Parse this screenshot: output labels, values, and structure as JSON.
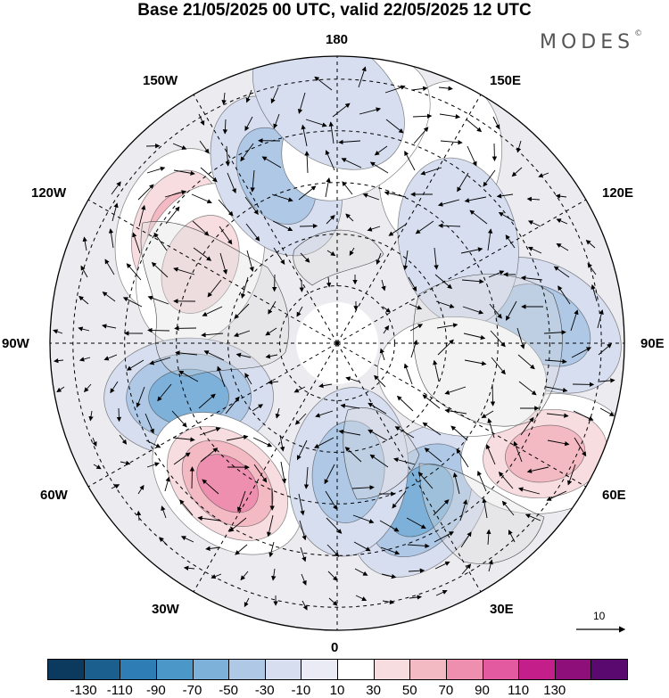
{
  "title": "Base 21/05/2025 00 UTC, valid 22/05/2025 12 UTC",
  "brand": "MODES",
  "brand_mark": "©",
  "longitude_labels": {
    "top": "180",
    "bottom": "0",
    "left": "90W",
    "right": "90E",
    "upper_left_1": "150W",
    "upper_left_2": "120W",
    "lower_left_1": "60W",
    "lower_left_2": "30W",
    "upper_right_1": "150E",
    "upper_right_2": "120E",
    "lower_right_1": "60E",
    "lower_right_2": "30E"
  },
  "reference_vector": "10",
  "colorbar": {
    "colors": [
      "#0c3a5e",
      "#1b5f8f",
      "#2f7db5",
      "#4b98c8",
      "#7eb1d9",
      "#aec8e6",
      "#d6def0",
      "#ebebf6",
      "#ffffff",
      "#f8dde0",
      "#f3bac4",
      "#ee8fb0",
      "#e45aa0",
      "#c41e8a",
      "#8f0f7a",
      "#5a0a6e"
    ],
    "ticks": [
      "-130",
      "-110",
      "-90",
      "-70",
      "-50",
      "-30",
      "-10",
      "10",
      "30",
      "50",
      "70",
      "90",
      "110",
      "130"
    ]
  },
  "map": {
    "anomalies": [
      {
        "lon": -125,
        "r": 0.68,
        "value": 70
      },
      {
        "lon": -120,
        "r": 0.55,
        "value": 50
      },
      {
        "lon": -160,
        "r": 0.62,
        "value": -50
      },
      {
        "lon": -70,
        "r": 0.55,
        "value": -60
      },
      {
        "lon": -38,
        "r": 0.62,
        "value": 90
      },
      {
        "lon": 28,
        "r": 0.62,
        "value": -60
      },
      {
        "lon": 5,
        "r": 0.45,
        "value": -40
      },
      {
        "lon": 62,
        "r": 0.82,
        "value": 70
      },
      {
        "lon": 95,
        "r": 0.72,
        "value": -40
      },
      {
        "lon": 150,
        "r": 0.72,
        "value": 30
      },
      {
        "lon": 175,
        "r": 0.75,
        "value": 20
      },
      {
        "lon": -178,
        "r": 0.85,
        "value": -20
      },
      {
        "lon": 130,
        "r": 0.55,
        "value": -20
      },
      {
        "lon": 75,
        "r": 0.45,
        "value": 20
      }
    ]
  }
}
